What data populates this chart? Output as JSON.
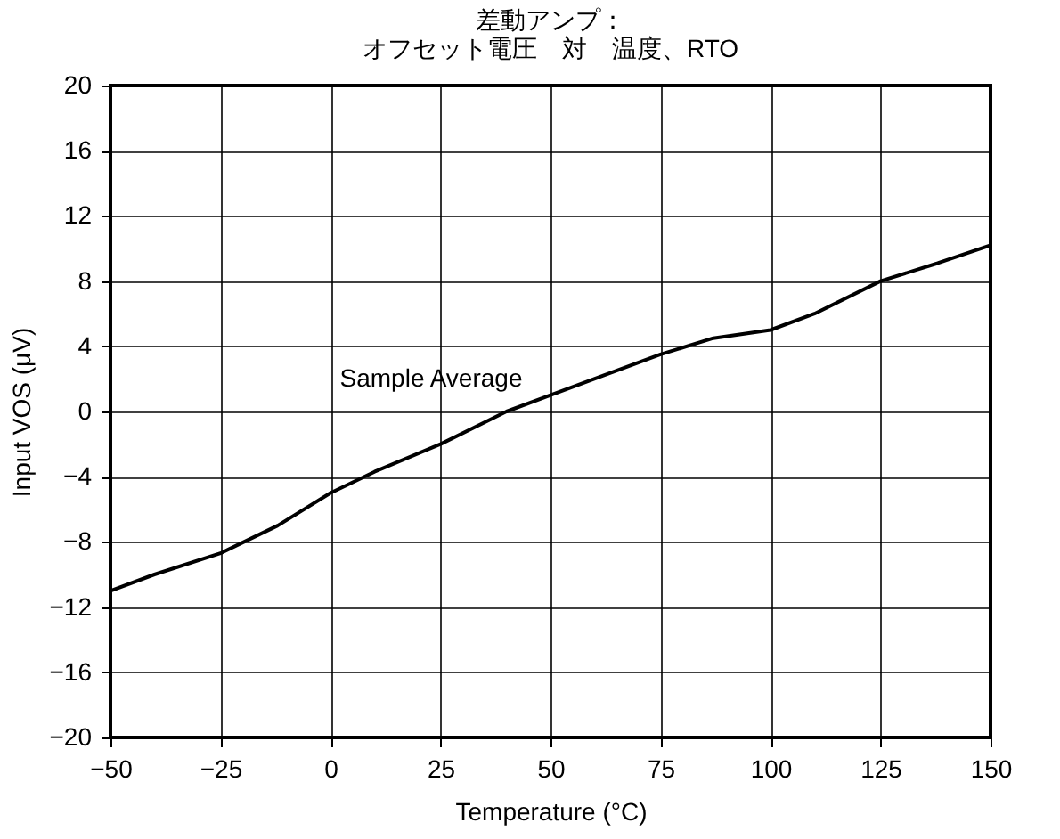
{
  "chart_data": {
    "type": "line",
    "title": "差動アンプ：",
    "subtitle": "オフセット電圧　対　温度、RTO",
    "xlabel": "Temperature (°C)",
    "ylabel": "Input VOS (μV)",
    "x": [
      -50,
      -40,
      -25,
      -12,
      0,
      10,
      25,
      40,
      50,
      62,
      75,
      87,
      100,
      110,
      125,
      138,
      150
    ],
    "series": [
      {
        "color": "#000000",
        "values": [
          -11,
          -10,
          -8.7,
          -7,
          -5,
          -3.7,
          -2,
          0,
          1,
          2.2,
          3.5,
          4.5,
          5,
          6,
          8,
          9.1,
          10.2
        ]
      }
    ],
    "annotations": [
      "Sample Average"
    ],
    "xlim": [
      -50,
      150
    ],
    "xticks": [
      {
        "value": -50,
        "label": "−50"
      },
      {
        "value": -25,
        "label": "−25"
      },
      0,
      25,
      50,
      75,
      100,
      125,
      150
    ],
    "ylim": [
      -20,
      20
    ],
    "yticks": [
      {
        "value": -20,
        "label": "−20"
      },
      {
        "value": -16,
        "label": "−16"
      },
      {
        "value": -12,
        "label": "−12"
      },
      {
        "value": -8,
        "label": "−8"
      },
      {
        "value": -4,
        "label": "−4"
      },
      0,
      4,
      8,
      12,
      16,
      20
    ],
    "grid": true,
    "marker": "none",
    "line_style": "solid"
  }
}
